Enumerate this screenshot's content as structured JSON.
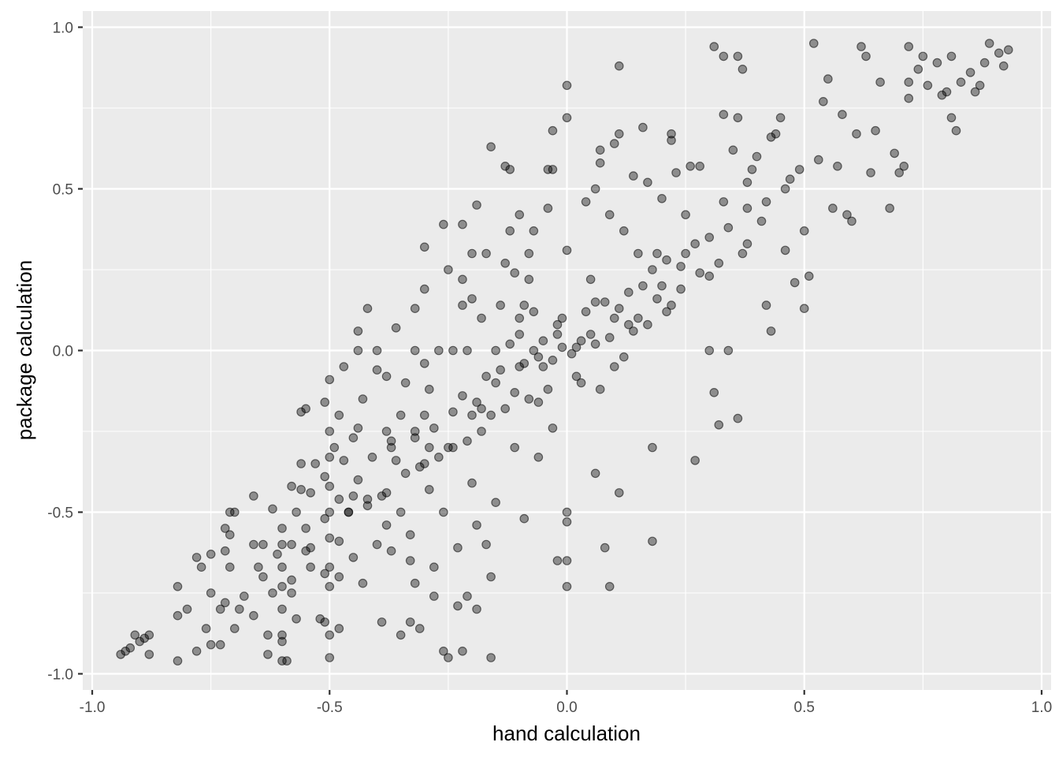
{
  "chart_data": {
    "type": "scatter",
    "xlabel": "hand calculation",
    "ylabel": "package calculation",
    "xlim": [
      -1.02,
      1.02
    ],
    "ylim": [
      -1.05,
      1.05
    ],
    "xticks": [
      -1.0,
      -0.5,
      0.0,
      0.5,
      1.0
    ],
    "xtick_labels": [
      "-1.0",
      "-0.5",
      "0.0",
      "0.5",
      "1.0"
    ],
    "yticks": [
      -1.0,
      -0.5,
      0.0,
      0.5,
      1.0
    ],
    "ytick_labels": [
      "-1.0",
      "-0.5",
      "0.0",
      "0.5",
      "1.0"
    ],
    "grid": true,
    "background": "#ebebeb",
    "point_color": "#000000",
    "point_alpha": 0.4,
    "points": [
      [
        -0.94,
        -0.94
      ],
      [
        -0.93,
        -0.93
      ],
      [
        -0.92,
        -0.92
      ],
      [
        -0.91,
        -0.88
      ],
      [
        -0.9,
        -0.9
      ],
      [
        -0.89,
        -0.89
      ],
      [
        -0.88,
        -0.94
      ],
      [
        -0.88,
        -0.88
      ],
      [
        -0.82,
        -0.73
      ],
      [
        -0.82,
        -0.82
      ],
      [
        -0.82,
        -0.96
      ],
      [
        -0.8,
        -0.8
      ],
      [
        -0.78,
        -0.64
      ],
      [
        -0.78,
        -0.93
      ],
      [
        -0.77,
        -0.67
      ],
      [
        -0.76,
        -0.86
      ],
      [
        -0.75,
        -0.63
      ],
      [
        -0.75,
        -0.75
      ],
      [
        -0.75,
        -0.91
      ],
      [
        -0.73,
        -0.8
      ],
      [
        -0.73,
        -0.91
      ],
      [
        -0.72,
        -0.55
      ],
      [
        -0.72,
        -0.62
      ],
      [
        -0.72,
        -0.78
      ],
      [
        -0.71,
        -0.5
      ],
      [
        -0.71,
        -0.57
      ],
      [
        -0.71,
        -0.67
      ],
      [
        -0.7,
        -0.86
      ],
      [
        -0.7,
        -0.5
      ],
      [
        -0.69,
        -0.8
      ],
      [
        -0.68,
        -0.76
      ],
      [
        -0.66,
        -0.45
      ],
      [
        -0.66,
        -0.6
      ],
      [
        -0.66,
        -0.82
      ],
      [
        -0.65,
        -0.67
      ],
      [
        -0.64,
        -0.7
      ],
      [
        -0.64,
        -0.6
      ],
      [
        -0.63,
        -0.94
      ],
      [
        -0.63,
        -0.88
      ],
      [
        -0.62,
        -0.49
      ],
      [
        -0.62,
        -0.75
      ],
      [
        -0.61,
        -0.63
      ],
      [
        -0.6,
        -0.88
      ],
      [
        -0.6,
        -0.96
      ],
      [
        -0.6,
        -0.55
      ],
      [
        -0.6,
        -0.6
      ],
      [
        -0.6,
        -0.67
      ],
      [
        -0.6,
        -0.73
      ],
      [
        -0.6,
        -0.8
      ],
      [
        -0.6,
        -0.9
      ],
      [
        -0.59,
        -0.96
      ],
      [
        -0.58,
        -0.42
      ],
      [
        -0.58,
        -0.6
      ],
      [
        -0.58,
        -0.71
      ],
      [
        -0.58,
        -0.75
      ],
      [
        -0.57,
        -0.5
      ],
      [
        -0.57,
        -0.83
      ],
      [
        -0.56,
        -0.35
      ],
      [
        -0.56,
        -0.19
      ],
      [
        -0.56,
        -0.43
      ],
      [
        -0.55,
        -0.18
      ],
      [
        -0.55,
        -0.55
      ],
      [
        -0.55,
        -0.62
      ],
      [
        -0.54,
        -0.67
      ],
      [
        -0.54,
        -0.44
      ],
      [
        -0.54,
        -0.61
      ],
      [
        -0.53,
        -0.35
      ],
      [
        -0.52,
        -0.83
      ],
      [
        -0.51,
        -0.16
      ],
      [
        -0.51,
        -0.39
      ],
      [
        -0.51,
        -0.52
      ],
      [
        -0.51,
        -0.69
      ],
      [
        -0.51,
        -0.84
      ],
      [
        -0.5,
        -0.09
      ],
      [
        -0.5,
        -0.25
      ],
      [
        -0.5,
        -0.33
      ],
      [
        -0.5,
        -0.42
      ],
      [
        -0.5,
        -0.5
      ],
      [
        -0.5,
        -0.58
      ],
      [
        -0.5,
        -0.67
      ],
      [
        -0.5,
        -0.73
      ],
      [
        -0.5,
        -0.88
      ],
      [
        -0.5,
        -0.95
      ],
      [
        -0.49,
        -0.3
      ],
      [
        -0.48,
        -0.2
      ],
      [
        -0.48,
        -0.46
      ],
      [
        -0.48,
        -0.59
      ],
      [
        -0.48,
        -0.7
      ],
      [
        -0.48,
        -0.86
      ],
      [
        -0.47,
        -0.05
      ],
      [
        -0.47,
        -0.34
      ],
      [
        -0.46,
        -0.5
      ],
      [
        -0.45,
        -0.27
      ],
      [
        -0.45,
        -0.45
      ],
      [
        -0.45,
        -0.64
      ],
      [
        -0.44,
        0.06
      ],
      [
        -0.44,
        -0.24
      ],
      [
        -0.44,
        0.0
      ],
      [
        -0.44,
        -0.4
      ],
      [
        -0.43,
        -0.72
      ],
      [
        -0.43,
        -0.15
      ],
      [
        -0.42,
        -0.48
      ],
      [
        -0.42,
        0.13
      ],
      [
        -0.41,
        -0.33
      ],
      [
        -0.4,
        -0.6
      ],
      [
        -0.4,
        -0.06
      ],
      [
        -0.4,
        0.0
      ],
      [
        -0.39,
        -0.45
      ],
      [
        -0.39,
        -0.84
      ],
      [
        -0.38,
        -0.54
      ],
      [
        -0.38,
        -0.08
      ],
      [
        -0.38,
        -0.25
      ],
      [
        -0.37,
        -0.28
      ],
      [
        -0.37,
        -0.62
      ],
      [
        -0.36,
        -0.34
      ],
      [
        -0.36,
        0.07
      ],
      [
        -0.35,
        -0.2
      ],
      [
        -0.35,
        -0.5
      ],
      [
        -0.35,
        -0.88
      ],
      [
        -0.34,
        -0.1
      ],
      [
        -0.33,
        -0.57
      ],
      [
        -0.33,
        -0.65
      ],
      [
        -0.33,
        -0.84
      ],
      [
        -0.32,
        0.0
      ],
      [
        -0.32,
        0.13
      ],
      [
        -0.32,
        -0.25
      ],
      [
        -0.32,
        -0.72
      ],
      [
        -0.31,
        -0.36
      ],
      [
        -0.31,
        -0.86
      ],
      [
        -0.3,
        -0.04
      ],
      [
        -0.3,
        -0.2
      ],
      [
        -0.3,
        0.19
      ],
      [
        -0.3,
        0.32
      ],
      [
        -0.29,
        -0.12
      ],
      [
        -0.29,
        -0.3
      ],
      [
        -0.29,
        -0.43
      ],
      [
        -0.28,
        -0.67
      ],
      [
        -0.28,
        -0.76
      ],
      [
        -0.27,
        0.0
      ],
      [
        -0.26,
        -0.5
      ],
      [
        -0.26,
        0.39
      ],
      [
        -0.26,
        -0.93
      ],
      [
        -0.25,
        -0.95
      ],
      [
        -0.25,
        0.25
      ],
      [
        -0.24,
        0.0
      ],
      [
        -0.24,
        -0.3
      ],
      [
        -0.23,
        -0.79
      ],
      [
        -0.23,
        -0.61
      ],
      [
        -0.22,
        0.14
      ],
      [
        -0.22,
        0.22
      ],
      [
        -0.22,
        0.39
      ],
      [
        -0.22,
        -0.93
      ],
      [
        -0.21,
        -0.76
      ],
      [
        -0.21,
        0.0
      ],
      [
        -0.2,
        -0.41
      ],
      [
        -0.2,
        0.16
      ],
      [
        -0.2,
        0.3
      ],
      [
        -0.19,
        -0.8
      ],
      [
        -0.19,
        -0.54
      ],
      [
        -0.19,
        0.45
      ],
      [
        -0.18,
        -0.18
      ],
      [
        -0.18,
        0.1
      ],
      [
        -0.17,
        -0.6
      ],
      [
        -0.17,
        0.3
      ],
      [
        -0.16,
        -0.95
      ],
      [
        -0.16,
        -0.7
      ],
      [
        -0.16,
        0.63
      ],
      [
        -0.15,
        -0.47
      ],
      [
        -0.15,
        0.0
      ],
      [
        -0.14,
        0.14
      ],
      [
        -0.13,
        0.57
      ],
      [
        -0.13,
        0.27
      ],
      [
        -0.12,
        0.37
      ],
      [
        -0.12,
        0.56
      ],
      [
        -0.11,
        -0.3
      ],
      [
        -0.11,
        0.24
      ],
      [
        -0.1,
        -0.05
      ],
      [
        -0.1,
        0.42
      ],
      [
        -0.1,
        0.1
      ],
      [
        -0.09,
        -0.52
      ],
      [
        -0.09,
        0.14
      ],
      [
        -0.08,
        0.22
      ],
      [
        -0.08,
        0.3
      ],
      [
        -0.07,
        0.37
      ],
      [
        -0.07,
        0.0
      ],
      [
        -0.06,
        -0.33
      ],
      [
        -0.06,
        -0.16
      ],
      [
        -0.05,
        0.03
      ],
      [
        -0.04,
        0.44
      ],
      [
        -0.04,
        0.56
      ],
      [
        -0.03,
        0.68
      ],
      [
        -0.03,
        0.56
      ],
      [
        -0.03,
        -0.24
      ],
      [
        -0.02,
        -0.65
      ],
      [
        -0.02,
        0.05
      ],
      [
        -0.01,
        0.1
      ],
      [
        0.0,
        0.82
      ],
      [
        0.0,
        0.72
      ],
      [
        0.0,
        0.31
      ],
      [
        0.0,
        -0.5
      ],
      [
        0.0,
        -0.53
      ],
      [
        0.0,
        -0.65
      ],
      [
        0.0,
        -0.73
      ],
      [
        0.02,
        0.01
      ],
      [
        0.03,
        -0.1
      ],
      [
        0.04,
        0.46
      ],
      [
        0.05,
        0.22
      ],
      [
        0.06,
        0.5
      ],
      [
        0.06,
        -0.38
      ],
      [
        0.06,
        0.15
      ],
      [
        0.07,
        0.62
      ],
      [
        0.07,
        0.58
      ],
      [
        0.08,
        -0.61
      ],
      [
        0.09,
        0.42
      ],
      [
        0.09,
        -0.73
      ],
      [
        0.1,
        0.64
      ],
      [
        0.11,
        0.88
      ],
      [
        0.11,
        0.67
      ],
      [
        0.11,
        -0.44
      ],
      [
        0.12,
        0.37
      ],
      [
        0.13,
        0.08
      ],
      [
        0.14,
        0.54
      ],
      [
        0.15,
        0.3
      ],
      [
        0.16,
        0.69
      ],
      [
        0.17,
        0.52
      ],
      [
        0.18,
        -0.3
      ],
      [
        0.18,
        -0.59
      ],
      [
        0.19,
        0.3
      ],
      [
        0.2,
        0.47
      ],
      [
        0.21,
        0.12
      ],
      [
        0.22,
        0.67
      ],
      [
        0.22,
        0.65
      ],
      [
        0.23,
        0.55
      ],
      [
        0.24,
        0.26
      ],
      [
        0.25,
        0.42
      ],
      [
        0.26,
        0.57
      ],
      [
        0.27,
        -0.34
      ],
      [
        0.28,
        0.57
      ],
      [
        0.3,
        0.0
      ],
      [
        0.3,
        0.23
      ],
      [
        0.31,
        0.94
      ],
      [
        0.31,
        -0.13
      ],
      [
        0.32,
        -0.23
      ],
      [
        0.33,
        0.91
      ],
      [
        0.33,
        0.73
      ],
      [
        0.33,
        0.46
      ],
      [
        0.34,
        0.0
      ],
      [
        0.35,
        0.62
      ],
      [
        0.36,
        0.91
      ],
      [
        0.36,
        0.72
      ],
      [
        0.36,
        -0.21
      ],
      [
        0.37,
        0.87
      ],
      [
        0.38,
        0.52
      ],
      [
        0.38,
        0.33
      ],
      [
        0.39,
        0.56
      ],
      [
        0.4,
        0.6
      ],
      [
        0.41,
        0.4
      ],
      [
        0.42,
        0.14
      ],
      [
        0.43,
        0.66
      ],
      [
        0.43,
        0.06
      ],
      [
        0.44,
        0.67
      ],
      [
        0.45,
        0.72
      ],
      [
        0.46,
        0.31
      ],
      [
        0.47,
        0.53
      ],
      [
        0.48,
        0.21
      ],
      [
        0.49,
        0.56
      ],
      [
        0.5,
        0.37
      ],
      [
        0.5,
        0.13
      ],
      [
        0.51,
        0.23
      ],
      [
        0.52,
        0.95
      ],
      [
        0.53,
        0.59
      ],
      [
        0.54,
        0.77
      ],
      [
        0.55,
        0.84
      ],
      [
        0.56,
        0.44
      ],
      [
        0.57,
        0.57
      ],
      [
        0.58,
        0.73
      ],
      [
        0.59,
        0.42
      ],
      [
        0.6,
        0.4
      ],
      [
        0.61,
        0.67
      ],
      [
        0.62,
        0.94
      ],
      [
        0.63,
        0.91
      ],
      [
        0.64,
        0.55
      ],
      [
        0.65,
        0.68
      ],
      [
        0.66,
        0.83
      ],
      [
        0.68,
        0.44
      ],
      [
        0.69,
        0.61
      ],
      [
        0.7,
        0.55
      ],
      [
        0.71,
        0.57
      ],
      [
        0.72,
        0.94
      ],
      [
        0.72,
        0.83
      ],
      [
        0.72,
        0.78
      ],
      [
        0.74,
        0.87
      ],
      [
        0.75,
        0.91
      ],
      [
        0.76,
        0.82
      ],
      [
        0.78,
        0.89
      ],
      [
        0.79,
        0.79
      ],
      [
        0.8,
        0.8
      ],
      [
        0.81,
        0.72
      ],
      [
        0.81,
        0.91
      ],
      [
        0.82,
        0.68
      ],
      [
        0.83,
        0.83
      ],
      [
        0.85,
        0.86
      ],
      [
        0.86,
        0.8
      ],
      [
        0.87,
        0.82
      ],
      [
        0.88,
        0.89
      ],
      [
        0.89,
        0.95
      ],
      [
        0.91,
        0.92
      ],
      [
        0.92,
        0.88
      ],
      [
        0.93,
        0.93
      ],
      [
        0.1,
        0.1
      ],
      [
        0.05,
        0.05
      ],
      [
        -0.05,
        -0.05
      ],
      [
        0.2,
        0.2
      ],
      [
        -0.2,
        -0.2
      ],
      [
        0.15,
        0.1
      ],
      [
        -0.15,
        -0.1
      ],
      [
        0.25,
        0.3
      ],
      [
        -0.25,
        -0.3
      ],
      [
        0.3,
        0.35
      ],
      [
        -0.3,
        -0.35
      ],
      [
        0.08,
        0.15
      ],
      [
        -0.08,
        -0.15
      ],
      [
        0.12,
        -0.02
      ],
      [
        -0.12,
        0.02
      ],
      [
        0.18,
        0.25
      ],
      [
        -0.18,
        -0.25
      ],
      [
        0.02,
        -0.08
      ],
      [
        -0.02,
        0.08
      ],
      [
        0.06,
        0.02
      ],
      [
        -0.06,
        -0.02
      ],
      [
        0.14,
        0.06
      ],
      [
        -0.14,
        -0.06
      ],
      [
        0.22,
        0.14
      ],
      [
        -0.22,
        -0.14
      ],
      [
        0.04,
        0.12
      ],
      [
        -0.04,
        -0.12
      ],
      [
        0.1,
        -0.05
      ],
      [
        -0.1,
        0.05
      ],
      [
        0.16,
        0.2
      ],
      [
        -0.16,
        -0.2
      ],
      [
        0.28,
        0.24
      ],
      [
        -0.28,
        -0.24
      ],
      [
        0.34,
        0.38
      ],
      [
        -0.34,
        -0.38
      ],
      [
        0.38,
        0.44
      ],
      [
        -0.38,
        -0.44
      ],
      [
        0.42,
        0.46
      ],
      [
        -0.42,
        -0.46
      ],
      [
        0.46,
        0.5
      ],
      [
        -0.46,
        -0.5
      ],
      [
        0.07,
        -0.12
      ],
      [
        -0.07,
        0.12
      ],
      [
        0.09,
        0.04
      ],
      [
        -0.09,
        -0.04
      ],
      [
        0.13,
        0.18
      ],
      [
        -0.13,
        -0.18
      ],
      [
        0.17,
        0.08
      ],
      [
        -0.17,
        -0.08
      ],
      [
        0.21,
        0.28
      ],
      [
        -0.21,
        -0.28
      ],
      [
        0.03,
        0.03
      ],
      [
        -0.03,
        -0.03
      ],
      [
        0.01,
        -0.01
      ],
      [
        -0.01,
        0.01
      ],
      [
        0.11,
        0.13
      ],
      [
        -0.11,
        -0.13
      ],
      [
        0.19,
        0.16
      ],
      [
        -0.19,
        -0.16
      ],
      [
        0.24,
        0.19
      ],
      [
        -0.24,
        -0.19
      ],
      [
        0.27,
        0.33
      ],
      [
        -0.27,
        -0.33
      ],
      [
        0.32,
        0.27
      ],
      [
        -0.32,
        -0.27
      ],
      [
        0.37,
        0.3
      ],
      [
        -0.37,
        -0.3
      ]
    ]
  }
}
